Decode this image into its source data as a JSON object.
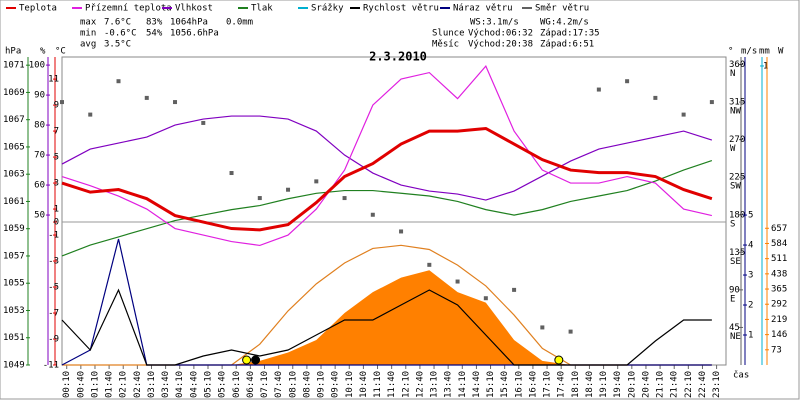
{
  "chart_data": {
    "type": "line",
    "title": "2.3.2010",
    "legend": [
      {
        "name": "Teplota",
        "color": "#e00000"
      },
      {
        "name": "Přízemní teplota",
        "color": "#e020e0"
      },
      {
        "name": "Vlhkost",
        "color": "#8000c0"
      },
      {
        "name": "Tlak",
        "color": "#208020"
      },
      {
        "name": "Srážky",
        "color": "#00b0d0"
      },
      {
        "name": "Rychlost větru",
        "color": "#000000"
      },
      {
        "name": "Náraz větru",
        "color": "#000080"
      },
      {
        "name": "Směr větru",
        "color": "#606060"
      }
    ],
    "stats": [
      [
        "max",
        "7.6°C",
        "83%",
        "1064hPa",
        "0.0mm"
      ],
      [
        "min",
        "-0.6°C",
        "54%",
        "1056.6hPa"
      ],
      [
        "avg",
        "3.5°C"
      ]
    ],
    "info": [
      [
        "WS:3.1m/s",
        "WG:4.2m/s"
      ],
      [
        "Slunce",
        "Východ:06:32",
        "Západ:17:35"
      ],
      [
        "Měsíc",
        "Východ:20:38",
        "Západ:6:51"
      ]
    ],
    "axes": {
      "pressure": {
        "unit": "hPa",
        "color": "#208020",
        "lim": [
          1049,
          1071.6
        ],
        "ticks": [
          1049,
          1051,
          1053,
          1055,
          1057,
          1059,
          1061,
          1063,
          1065,
          1067,
          1069,
          1071
        ]
      },
      "humidity": {
        "unit": "%",
        "color": "#8000c0",
        "lim": [
          0,
          102.7
        ],
        "ticks": [
          50,
          60,
          70,
          80,
          90,
          100
        ]
      },
      "temp": {
        "unit": "°C",
        "color": "#e00000",
        "lim": [
          -11,
          12.7
        ],
        "ticks": [
          -11,
          -9,
          -7,
          -5,
          -3,
          -1,
          0,
          1,
          3,
          5,
          7,
          9,
          11
        ]
      },
      "direction": {
        "unit": "°",
        "color": "#606060",
        "lim": [
          0,
          369
        ],
        "ticks": [
          45,
          90,
          135,
          180,
          225,
          270,
          315,
          360
        ],
        "compass": [
          "NE",
          "E",
          "SE",
          "S",
          "SW",
          "W",
          "NW",
          "N"
        ]
      },
      "wind": {
        "unit": "m/s",
        "color": "#000080",
        "lim": [
          0,
          10.27
        ],
        "ticks": [
          1,
          2,
          3,
          4,
          5
        ]
      },
      "rain": {
        "unit": "mm",
        "color": "#00b0d0",
        "lim": [
          0,
          1.03
        ],
        "ticks": [
          1
        ]
      },
      "solar": {
        "unit": "W",
        "color": "#ff8000",
        "lim": [
          0,
          1480
        ],
        "ticks": [
          73,
          146,
          219,
          292,
          365,
          438,
          511,
          584,
          657
        ]
      }
    },
    "xlabel": "čas",
    "xlim": [
      0,
      23.5
    ],
    "xticks": [
      {
        "value": 0.167,
        "label": "00:10"
      },
      {
        "value": 0.667,
        "label": "00:40"
      },
      {
        "value": 1.167,
        "label": "01:10"
      },
      {
        "value": 1.667,
        "label": "01:40"
      },
      {
        "value": 2.167,
        "label": "02:10"
      },
      {
        "value": 2.667,
        "label": "02:40"
      },
      {
        "value": 3.167,
        "label": "03:10"
      },
      {
        "value": 3.667,
        "label": "03:40"
      },
      {
        "value": 4.167,
        "label": "04:10"
      },
      {
        "value": 4.667,
        "label": "04:40"
      },
      {
        "value": 5.167,
        "label": "05:10"
      },
      {
        "value": 5.667,
        "label": "05:40"
      },
      {
        "value": 6.167,
        "label": "06:10"
      },
      {
        "value": 6.667,
        "label": "06:40"
      },
      {
        "value": 7.167,
        "label": "07:10"
      },
      {
        "value": 7.667,
        "label": "07:40"
      },
      {
        "value": 8.167,
        "label": "08:10"
      },
      {
        "value": 8.667,
        "label": "08:40"
      },
      {
        "value": 9.167,
        "label": "09:10"
      },
      {
        "value": 9.667,
        "label": "09:40"
      },
      {
        "value": 10.167,
        "label": "10:10"
      },
      {
        "value": 10.667,
        "label": "10:40"
      },
      {
        "value": 11.167,
        "label": "11:10"
      },
      {
        "value": 11.667,
        "label": "11:40"
      },
      {
        "value": 12.167,
        "label": "12:10"
      },
      {
        "value": 12.667,
        "label": "12:40"
      },
      {
        "value": 13.167,
        "label": "13:10"
      },
      {
        "value": 13.667,
        "label": "13:40"
      },
      {
        "value": 14.167,
        "label": "14:10"
      },
      {
        "value": 14.667,
        "label": "14:40"
      },
      {
        "value": 15.167,
        "label": "15:10"
      },
      {
        "value": 15.667,
        "label": "15:40"
      },
      {
        "value": 16.167,
        "label": "16:10"
      },
      {
        "value": 16.667,
        "label": "16:40"
      },
      {
        "value": 17.167,
        "label": "17:10"
      },
      {
        "value": 17.667,
        "label": "17:40"
      },
      {
        "value": 18.167,
        "label": "18:10"
      },
      {
        "value": 18.667,
        "label": "18:40"
      },
      {
        "value": 19.167,
        "label": "19:10"
      },
      {
        "value": 19.667,
        "label": "19:40"
      },
      {
        "value": 20.167,
        "label": "20:10"
      },
      {
        "value": 20.667,
        "label": "20:40"
      },
      {
        "value": 21.167,
        "label": "21:10"
      },
      {
        "value": 21.667,
        "label": "21:40"
      },
      {
        "value": 22.167,
        "label": "22:10"
      },
      {
        "value": 22.667,
        "label": "22:40"
      },
      {
        "value": 23.167,
        "label": "23:10"
      }
    ],
    "x": [
      0,
      1,
      2,
      3,
      4,
      5,
      6,
      7,
      8,
      9,
      10,
      11,
      12,
      13,
      14,
      15,
      16,
      17,
      18,
      19,
      20,
      21,
      22,
      23
    ],
    "series": [
      {
        "color": "#ff8000",
        "axis": "solar",
        "style": "area",
        "values": [
          0,
          0,
          0,
          0,
          0,
          0,
          0,
          20,
          60,
          120,
          250,
          350,
          420,
          455,
          350,
          300,
          120,
          20,
          0,
          0,
          0,
          0,
          0,
          0
        ]
      },
      {
        "color": "#e08020",
        "axis": "solar",
        "style": "line",
        "values": [
          0,
          0,
          0,
          0,
          0,
          0,
          0,
          100,
          260,
          390,
          490,
          560,
          575,
          555,
          480,
          380,
          240,
          80,
          0,
          0,
          0,
          0,
          0,
          0
        ]
      },
      {
        "name": "Směr větru",
        "color": "#606060",
        "axis": "direction",
        "style": "dots",
        "values": [
          315,
          300,
          340,
          320,
          315,
          290,
          230,
          200,
          210,
          220,
          200,
          180,
          160,
          120,
          100,
          80,
          90,
          45,
          40,
          330,
          340,
          320,
          300,
          315
        ]
      },
      {
        "name": "Tlak",
        "color": "#208020",
        "axis": "pressure",
        "style": "line",
        "values": [
          1057.0,
          1057.8,
          1058.4,
          1059.0,
          1059.6,
          1060.0,
          1060.4,
          1060.7,
          1061.2,
          1061.6,
          1061.8,
          1061.8,
          1061.6,
          1061.4,
          1061.0,
          1060.4,
          1060.0,
          1060.4,
          1061.0,
          1061.4,
          1061.8,
          1062.5,
          1063.3,
          1064.0
        ]
      },
      {
        "name": "Vlhkost",
        "color": "#8000c0",
        "axis": "humidity",
        "style": "line",
        "values": [
          67,
          72,
          74,
          76,
          80,
          82,
          83,
          83,
          82,
          78,
          70,
          64,
          60,
          58,
          57,
          55,
          58,
          63,
          68,
          72,
          74,
          76,
          78,
          75
        ]
      },
      {
        "name": "Přízemní teplota",
        "color": "#e020e0",
        "axis": "temp",
        "style": "line",
        "values": [
          3.5,
          2.8,
          2.0,
          1.0,
          -0.5,
          -1.0,
          -1.5,
          -1.8,
          -1.0,
          1.0,
          4.0,
          9.0,
          11.0,
          11.5,
          9.5,
          12.0,
          7.0,
          4.0,
          3.0,
          3.0,
          3.5,
          3.0,
          1.0,
          0.5
        ]
      },
      {
        "name": "Teplota",
        "color": "#e00000",
        "axis": "temp",
        "style": "thick",
        "values": [
          3.0,
          2.3,
          2.5,
          1.8,
          0.5,
          0.0,
          -0.5,
          -0.6,
          -0.2,
          1.5,
          3.5,
          4.5,
          6.0,
          7.0,
          7.0,
          7.2,
          6.0,
          4.8,
          4.0,
          3.8,
          3.8,
          3.5,
          2.5,
          1.8
        ]
      },
      {
        "name": "Náraz větru",
        "color": "#000080",
        "axis": "wind",
        "style": "line",
        "values": [
          0,
          0.5,
          4.2,
          0,
          0,
          0,
          0,
          0,
          0,
          0,
          0,
          0,
          0,
          0,
          0,
          0,
          0,
          0,
          0,
          0,
          0,
          0,
          0,
          0
        ]
      },
      {
        "name": "Rychlost větru",
        "color": "#000000",
        "axis": "wind",
        "style": "line",
        "values": [
          1.5,
          0.5,
          2.5,
          0,
          0,
          0.3,
          0.5,
          0.3,
          0.5,
          1,
          1.5,
          1.5,
          2,
          2.5,
          2,
          1,
          0,
          0,
          0,
          0,
          0,
          0.8,
          1.5,
          1.5
        ]
      }
    ]
  }
}
